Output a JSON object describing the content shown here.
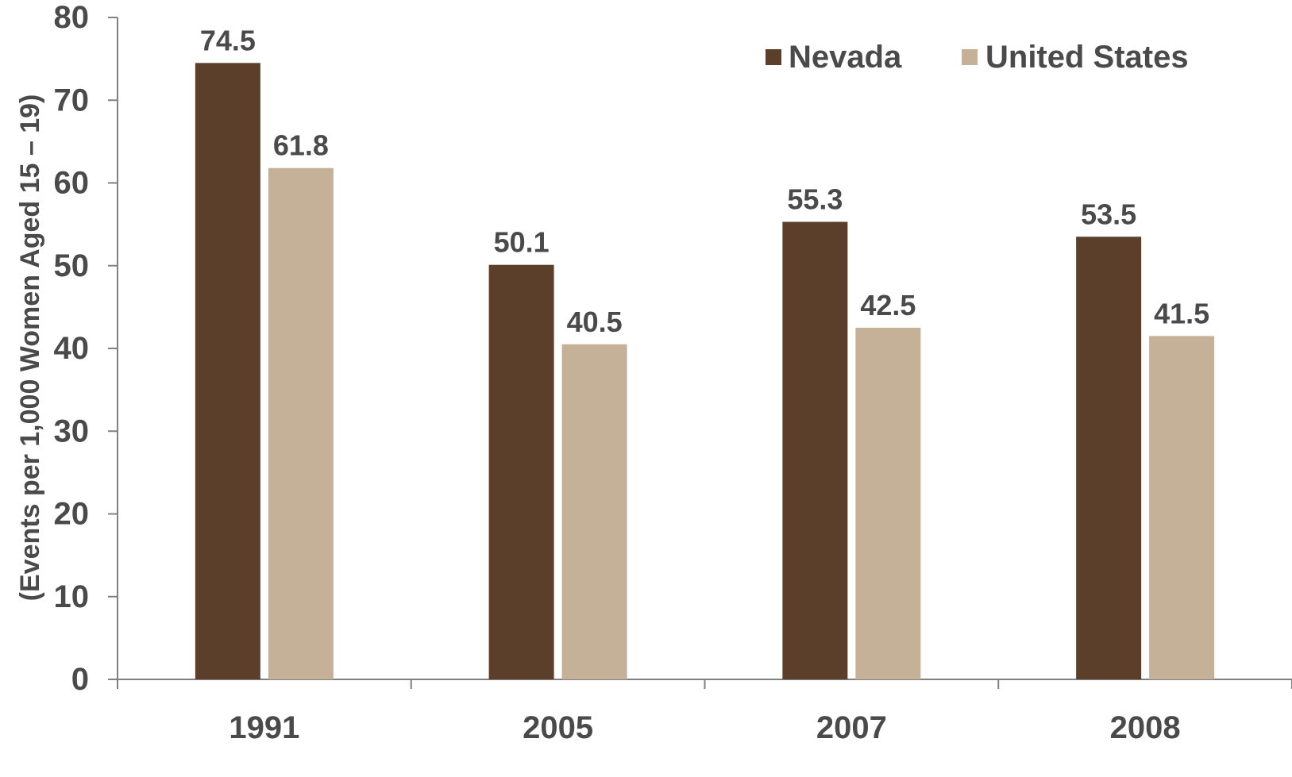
{
  "chart_data": {
    "type": "bar",
    "categories": [
      "1991",
      "2005",
      "2007",
      "2008"
    ],
    "series": [
      {
        "name": "Nevada",
        "values": [
          74.5,
          50.1,
          55.3,
          53.5
        ],
        "color": "#5c3f2a"
      },
      {
        "name": "United States",
        "values": [
          61.8,
          40.5,
          42.5,
          41.5
        ],
        "color": "#c5b098"
      }
    ],
    "data_labels": [
      [
        "74.5",
        "50.1",
        "55.3",
        "53.5"
      ],
      [
        "61.8",
        "40.5",
        "42.5",
        "41.5"
      ]
    ],
    "title": "",
    "xlabel": "",
    "ylabel": "(Events per 1,000 Women Aged 15 – 19)",
    "ylim": [
      0,
      80
    ],
    "yticks": [
      0,
      10,
      20,
      30,
      40,
      50,
      60,
      70,
      80
    ],
    "grid": false,
    "legend_position": "top-right"
  },
  "colors": {
    "axis": "#808080",
    "text": "#4a4a4a"
  }
}
